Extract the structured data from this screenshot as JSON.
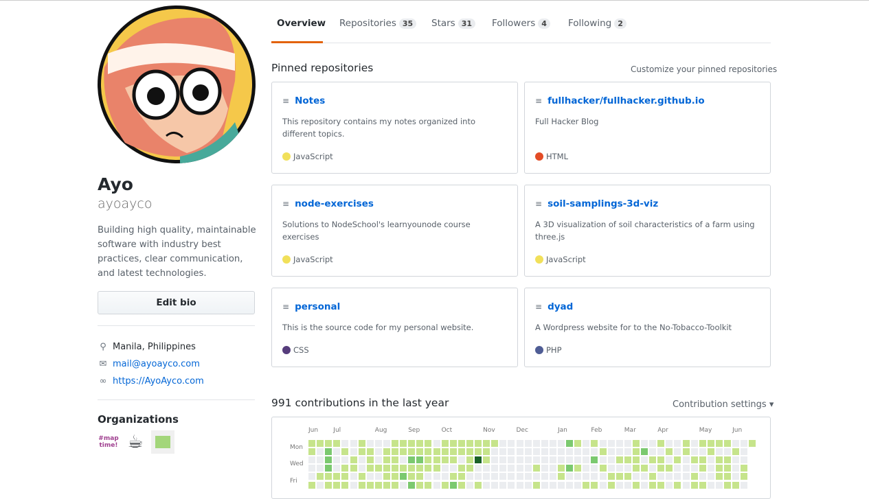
{
  "profile": {
    "name": "Ayo",
    "login": "ayoayco",
    "bio": "Building high quality, maintainable software with industry best practices, clear communication, and latest technologies.",
    "edit_bio": "Edit bio",
    "location": "Manila, Philippines",
    "email": "mail@ayoayco.com",
    "website": "https://AyoAyco.com",
    "organizations_title": "Organizations",
    "organizations": [
      "#maptime",
      "coffee",
      "green-org"
    ]
  },
  "tabs": [
    {
      "label": "Overview",
      "selected": true
    },
    {
      "label": "Repositories",
      "count": "35"
    },
    {
      "label": "Stars",
      "count": "31"
    },
    {
      "label": "Followers",
      "count": "4"
    },
    {
      "label": "Following",
      "count": "2"
    }
  ],
  "pinned": {
    "title": "Pinned repositories",
    "customize": "Customize your pinned repositories",
    "repos": [
      {
        "name": "Notes",
        "description": "This repository contains my notes organized into different topics.",
        "language": "JavaScript",
        "color": "#f1e05a"
      },
      {
        "name": "fullhacker/fullhacker.github.io",
        "description": "Full Hacker Blog",
        "language": "HTML",
        "color": "#e34c26"
      },
      {
        "name": "node-exercises",
        "description": "Solutions to NodeSchool's learnyounode course exercises",
        "language": "JavaScript",
        "color": "#f1e05a"
      },
      {
        "name": "soil-samplings-3d-viz",
        "description": "A 3D visualization of soil characteristics of a farm using three.js",
        "language": "JavaScript",
        "color": "#f1e05a"
      },
      {
        "name": "personal",
        "description": "This is the source code for my personal website.",
        "language": "CSS",
        "color": "#563d7c"
      },
      {
        "name": "dyad",
        "description": "A Wordpress website for to the No-Tobacco-Toolkit",
        "language": "PHP",
        "color": "#4F5D95"
      }
    ]
  },
  "contributions": {
    "title": "991 contributions in the last year",
    "settings": "Contribution settings ▾",
    "months": [
      {
        "label": "Jun",
        "week": 0
      },
      {
        "label": "Jul",
        "week": 3
      },
      {
        "label": "Aug",
        "week": 8
      },
      {
        "label": "Sep",
        "week": 12
      },
      {
        "label": "Oct",
        "week": 16
      },
      {
        "label": "Nov",
        "week": 21
      },
      {
        "label": "Dec",
        "week": 25
      },
      {
        "label": "Jan",
        "week": 30
      },
      {
        "label": "Feb",
        "week": 34
      },
      {
        "label": "Mar",
        "week": 38
      },
      {
        "label": "Apr",
        "week": 42
      },
      {
        "label": "May",
        "week": 47
      },
      {
        "label": "Jun",
        "week": 51
      }
    ],
    "days": [
      {
        "label": "Mon",
        "row": 1
      },
      {
        "label": "Wed",
        "row": 3
      },
      {
        "label": "Fri",
        "row": 5
      }
    ],
    "level_colors": [
      "#ebedf0",
      "#c6e48b",
      "#7bc96f",
      "#239a3b",
      "#196127"
    ],
    "levels": [
      "111100100011111011111110000000021010000100100101111001",
      "10201011011111111111110000000000000100012001010010010",
      "00200101011022111101410000000000002001110110101101100",
      "00201101111111110011000000010012100100011011000101101",
      "01111010011211000110000000000010000011100100001001101",
      "10111011111021101210100000010000011010010110101100110"
    ]
  }
}
